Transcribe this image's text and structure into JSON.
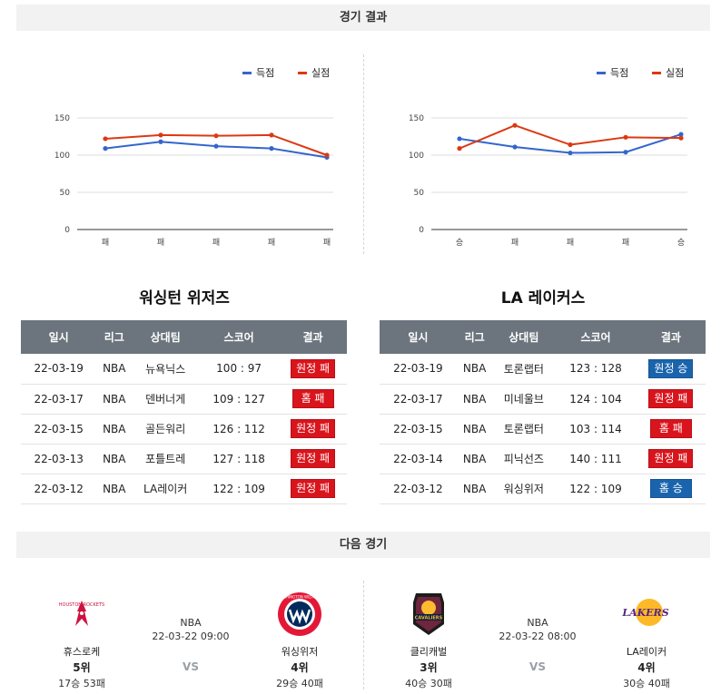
{
  "sections": {
    "results_title": "경기 결과",
    "next_title": "다음 경기"
  },
  "colors": {
    "scored": "#3366cc",
    "conceded": "#dc3912",
    "header_bg": "#6c757d",
    "loss": "#d9141c",
    "win": "#1a64ad"
  },
  "chart_data": [
    {
      "type": "line",
      "legend_position": "top-right",
      "grid": true,
      "ylim": [
        0,
        150
      ],
      "yticks": [
        0,
        50,
        100,
        150
      ],
      "categories": [
        "패",
        "패",
        "패",
        "패",
        "패"
      ],
      "series": [
        {
          "name": "득점",
          "values": [
            109,
            118,
            112,
            109,
            97
          ]
        },
        {
          "name": "실점",
          "values": [
            122,
            127,
            126,
            127,
            100
          ]
        }
      ]
    },
    {
      "type": "line",
      "legend_position": "top-right",
      "grid": true,
      "ylim": [
        0,
        150
      ],
      "yticks": [
        0,
        50,
        100,
        150
      ],
      "categories": [
        "승",
        "패",
        "패",
        "패",
        "승"
      ],
      "series": [
        {
          "name": "득점",
          "values": [
            122,
            111,
            103,
            104,
            128
          ]
        },
        {
          "name": "실점",
          "values": [
            109,
            140,
            114,
            124,
            123
          ]
        }
      ]
    }
  ],
  "tables": {
    "headers": [
      "일시",
      "리그",
      "상대팀",
      "스코어",
      "결과"
    ],
    "left": {
      "team": "워싱턴 위저즈",
      "rows": [
        {
          "date": "22-03-19",
          "league": "NBA",
          "opponent": "뉴욕닉스",
          "score": "100 : 97",
          "result": "원정 패",
          "outcome": "loss"
        },
        {
          "date": "22-03-17",
          "league": "NBA",
          "opponent": "덴버너게",
          "score": "109 : 127",
          "result": "홈 패",
          "outcome": "loss"
        },
        {
          "date": "22-03-15",
          "league": "NBA",
          "opponent": "골든워리",
          "score": "126 : 112",
          "result": "원정 패",
          "outcome": "loss"
        },
        {
          "date": "22-03-13",
          "league": "NBA",
          "opponent": "포틀트레",
          "score": "127 : 118",
          "result": "원정 패",
          "outcome": "loss"
        },
        {
          "date": "22-03-12",
          "league": "NBA",
          "opponent": "LA레이커",
          "score": "122 : 109",
          "result": "원정 패",
          "outcome": "loss"
        }
      ]
    },
    "right": {
      "team": "LA 레이커스",
      "rows": [
        {
          "date": "22-03-19",
          "league": "NBA",
          "opponent": "토론랩터",
          "score": "123 : 128",
          "result": "원정 승",
          "outcome": "win"
        },
        {
          "date": "22-03-17",
          "league": "NBA",
          "opponent": "미네울브",
          "score": "124 : 104",
          "result": "원정 패",
          "outcome": "loss"
        },
        {
          "date": "22-03-15",
          "league": "NBA",
          "opponent": "토론랩터",
          "score": "103 : 114",
          "result": "홈 패",
          "outcome": "loss"
        },
        {
          "date": "22-03-14",
          "league": "NBA",
          "opponent": "피닉선즈",
          "score": "140 : 111",
          "result": "원정 패",
          "outcome": "loss"
        },
        {
          "date": "22-03-12",
          "league": "NBA",
          "opponent": "워싱위저",
          "score": "122 : 109",
          "result": "홈 승",
          "outcome": "win"
        }
      ]
    }
  },
  "next_games": [
    {
      "league": "NBA",
      "datetime": "22-03-22 09:00",
      "vs": "VS",
      "home": {
        "name": "휴스로케",
        "rank": "5위",
        "record": "17승 53패",
        "logo": "rockets-logo",
        "logo_text": "HOUSTON ROCKETS",
        "color": "#ce1141"
      },
      "away": {
        "name": "워싱위저",
        "rank": "4위",
        "record": "29승 40패",
        "logo": "wizards-logo",
        "logo_text": "WASHINGTON WIZARDS",
        "color": "#e31837"
      }
    },
    {
      "league": "NBA",
      "datetime": "22-03-22 08:00",
      "vs": "VS",
      "home": {
        "name": "클리캐벌",
        "rank": "3위",
        "record": "40승 30패",
        "logo": "cavaliers-logo",
        "logo_text": "CAVALIERS",
        "color": "#6f263d"
      },
      "away": {
        "name": "LA레이커",
        "rank": "4위",
        "record": "30승 40패",
        "logo": "lakers-logo",
        "logo_text": "LAKERS",
        "color": "#552583"
      }
    }
  ]
}
